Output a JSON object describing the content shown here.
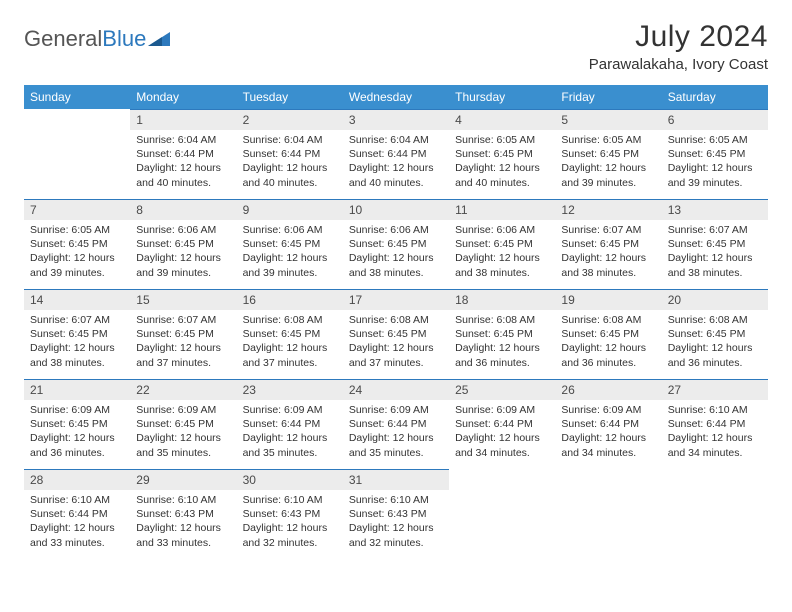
{
  "brand": {
    "part1": "General",
    "part2": "Blue"
  },
  "title": "July 2024",
  "location": "Parawalakaha, Ivory Coast",
  "colors": {
    "header_bg": "#3a8fcf",
    "header_text": "#ffffff",
    "daynum_bg": "#ececec",
    "row_border": "#2d79bd",
    "text": "#333333",
    "logo_gray": "#555555",
    "logo_blue": "#2d79bd",
    "page_bg": "#ffffff"
  },
  "weekdays": [
    "Sunday",
    "Monday",
    "Tuesday",
    "Wednesday",
    "Thursday",
    "Friday",
    "Saturday"
  ],
  "weeks": [
    [
      {
        "day": "",
        "sunrise": "",
        "sunset": "",
        "daylight": ""
      },
      {
        "day": "1",
        "sunrise": "Sunrise: 6:04 AM",
        "sunset": "Sunset: 6:44 PM",
        "daylight": "Daylight: 12 hours and 40 minutes."
      },
      {
        "day": "2",
        "sunrise": "Sunrise: 6:04 AM",
        "sunset": "Sunset: 6:44 PM",
        "daylight": "Daylight: 12 hours and 40 minutes."
      },
      {
        "day": "3",
        "sunrise": "Sunrise: 6:04 AM",
        "sunset": "Sunset: 6:44 PM",
        "daylight": "Daylight: 12 hours and 40 minutes."
      },
      {
        "day": "4",
        "sunrise": "Sunrise: 6:05 AM",
        "sunset": "Sunset: 6:45 PM",
        "daylight": "Daylight: 12 hours and 40 minutes."
      },
      {
        "day": "5",
        "sunrise": "Sunrise: 6:05 AM",
        "sunset": "Sunset: 6:45 PM",
        "daylight": "Daylight: 12 hours and 39 minutes."
      },
      {
        "day": "6",
        "sunrise": "Sunrise: 6:05 AM",
        "sunset": "Sunset: 6:45 PM",
        "daylight": "Daylight: 12 hours and 39 minutes."
      }
    ],
    [
      {
        "day": "7",
        "sunrise": "Sunrise: 6:05 AM",
        "sunset": "Sunset: 6:45 PM",
        "daylight": "Daylight: 12 hours and 39 minutes."
      },
      {
        "day": "8",
        "sunrise": "Sunrise: 6:06 AM",
        "sunset": "Sunset: 6:45 PM",
        "daylight": "Daylight: 12 hours and 39 minutes."
      },
      {
        "day": "9",
        "sunrise": "Sunrise: 6:06 AM",
        "sunset": "Sunset: 6:45 PM",
        "daylight": "Daylight: 12 hours and 39 minutes."
      },
      {
        "day": "10",
        "sunrise": "Sunrise: 6:06 AM",
        "sunset": "Sunset: 6:45 PM",
        "daylight": "Daylight: 12 hours and 38 minutes."
      },
      {
        "day": "11",
        "sunrise": "Sunrise: 6:06 AM",
        "sunset": "Sunset: 6:45 PM",
        "daylight": "Daylight: 12 hours and 38 minutes."
      },
      {
        "day": "12",
        "sunrise": "Sunrise: 6:07 AM",
        "sunset": "Sunset: 6:45 PM",
        "daylight": "Daylight: 12 hours and 38 minutes."
      },
      {
        "day": "13",
        "sunrise": "Sunrise: 6:07 AM",
        "sunset": "Sunset: 6:45 PM",
        "daylight": "Daylight: 12 hours and 38 minutes."
      }
    ],
    [
      {
        "day": "14",
        "sunrise": "Sunrise: 6:07 AM",
        "sunset": "Sunset: 6:45 PM",
        "daylight": "Daylight: 12 hours and 38 minutes."
      },
      {
        "day": "15",
        "sunrise": "Sunrise: 6:07 AM",
        "sunset": "Sunset: 6:45 PM",
        "daylight": "Daylight: 12 hours and 37 minutes."
      },
      {
        "day": "16",
        "sunrise": "Sunrise: 6:08 AM",
        "sunset": "Sunset: 6:45 PM",
        "daylight": "Daylight: 12 hours and 37 minutes."
      },
      {
        "day": "17",
        "sunrise": "Sunrise: 6:08 AM",
        "sunset": "Sunset: 6:45 PM",
        "daylight": "Daylight: 12 hours and 37 minutes."
      },
      {
        "day": "18",
        "sunrise": "Sunrise: 6:08 AM",
        "sunset": "Sunset: 6:45 PM",
        "daylight": "Daylight: 12 hours and 36 minutes."
      },
      {
        "day": "19",
        "sunrise": "Sunrise: 6:08 AM",
        "sunset": "Sunset: 6:45 PM",
        "daylight": "Daylight: 12 hours and 36 minutes."
      },
      {
        "day": "20",
        "sunrise": "Sunrise: 6:08 AM",
        "sunset": "Sunset: 6:45 PM",
        "daylight": "Daylight: 12 hours and 36 minutes."
      }
    ],
    [
      {
        "day": "21",
        "sunrise": "Sunrise: 6:09 AM",
        "sunset": "Sunset: 6:45 PM",
        "daylight": "Daylight: 12 hours and 36 minutes."
      },
      {
        "day": "22",
        "sunrise": "Sunrise: 6:09 AM",
        "sunset": "Sunset: 6:45 PM",
        "daylight": "Daylight: 12 hours and 35 minutes."
      },
      {
        "day": "23",
        "sunrise": "Sunrise: 6:09 AM",
        "sunset": "Sunset: 6:44 PM",
        "daylight": "Daylight: 12 hours and 35 minutes."
      },
      {
        "day": "24",
        "sunrise": "Sunrise: 6:09 AM",
        "sunset": "Sunset: 6:44 PM",
        "daylight": "Daylight: 12 hours and 35 minutes."
      },
      {
        "day": "25",
        "sunrise": "Sunrise: 6:09 AM",
        "sunset": "Sunset: 6:44 PM",
        "daylight": "Daylight: 12 hours and 34 minutes."
      },
      {
        "day": "26",
        "sunrise": "Sunrise: 6:09 AM",
        "sunset": "Sunset: 6:44 PM",
        "daylight": "Daylight: 12 hours and 34 minutes."
      },
      {
        "day": "27",
        "sunrise": "Sunrise: 6:10 AM",
        "sunset": "Sunset: 6:44 PM",
        "daylight": "Daylight: 12 hours and 34 minutes."
      }
    ],
    [
      {
        "day": "28",
        "sunrise": "Sunrise: 6:10 AM",
        "sunset": "Sunset: 6:44 PM",
        "daylight": "Daylight: 12 hours and 33 minutes."
      },
      {
        "day": "29",
        "sunrise": "Sunrise: 6:10 AM",
        "sunset": "Sunset: 6:43 PM",
        "daylight": "Daylight: 12 hours and 33 minutes."
      },
      {
        "day": "30",
        "sunrise": "Sunrise: 6:10 AM",
        "sunset": "Sunset: 6:43 PM",
        "daylight": "Daylight: 12 hours and 32 minutes."
      },
      {
        "day": "31",
        "sunrise": "Sunrise: 6:10 AM",
        "sunset": "Sunset: 6:43 PM",
        "daylight": "Daylight: 12 hours and 32 minutes."
      },
      {
        "day": "",
        "sunrise": "",
        "sunset": "",
        "daylight": ""
      },
      {
        "day": "",
        "sunrise": "",
        "sunset": "",
        "daylight": ""
      },
      {
        "day": "",
        "sunrise": "",
        "sunset": "",
        "daylight": ""
      }
    ]
  ]
}
